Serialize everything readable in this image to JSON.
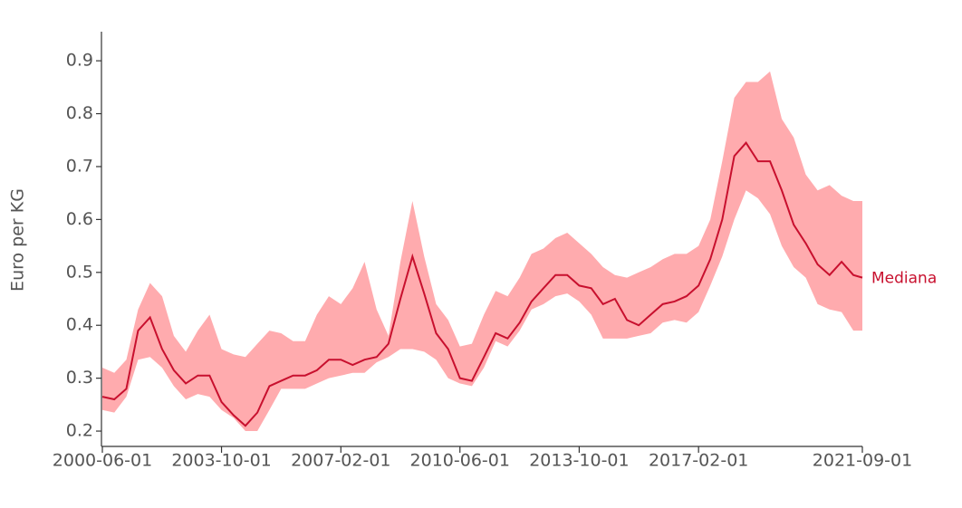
{
  "chart_data": {
    "type": "band-line",
    "y_label": "Euro per KG",
    "x": [
      "2000-06-01",
      "2000-10-01",
      "2001-02-01",
      "2001-06-01",
      "2001-10-01",
      "2002-02-01",
      "2002-06-01",
      "2002-10-01",
      "2003-02-01",
      "2003-06-01",
      "2003-10-01",
      "2004-02-01",
      "2004-06-01",
      "2004-10-01",
      "2005-02-01",
      "2005-06-01",
      "2005-10-01",
      "2006-02-01",
      "2006-06-01",
      "2006-10-01",
      "2007-02-01",
      "2007-06-01",
      "2007-10-01",
      "2008-02-01",
      "2008-06-01",
      "2008-10-01",
      "2009-02-01",
      "2009-06-01",
      "2009-10-01",
      "2010-02-01",
      "2010-06-01",
      "2010-10-01",
      "2011-02-01",
      "2011-06-01",
      "2011-10-01",
      "2012-02-01",
      "2012-06-01",
      "2012-10-01",
      "2013-02-01",
      "2013-06-01",
      "2013-10-01",
      "2014-02-01",
      "2014-06-01",
      "2014-10-01",
      "2015-02-01",
      "2015-06-01",
      "2015-10-01",
      "2016-02-01",
      "2016-06-01",
      "2016-10-01",
      "2017-02-01",
      "2017-06-01",
      "2017-10-01",
      "2018-02-01",
      "2018-06-01",
      "2018-10-01",
      "2019-02-01",
      "2019-06-01",
      "2019-10-01",
      "2020-02-01",
      "2020-06-01",
      "2020-10-01",
      "2021-02-01",
      "2021-06-01",
      "2021-09-01"
    ],
    "series": [
      {
        "name": "Mediana",
        "color": "#c8102e",
        "values": [
          0.265,
          0.26,
          0.28,
          0.39,
          0.415,
          0.355,
          0.315,
          0.29,
          0.305,
          0.305,
          0.255,
          0.23,
          0.21,
          0.235,
          0.285,
          0.295,
          0.305,
          0.305,
          0.315,
          0.335,
          0.335,
          0.325,
          0.335,
          0.34,
          0.365,
          0.45,
          0.53,
          0.46,
          0.385,
          0.355,
          0.3,
          0.295,
          0.34,
          0.385,
          0.375,
          0.405,
          0.445,
          0.47,
          0.495,
          0.495,
          0.475,
          0.47,
          0.44,
          0.45,
          0.41,
          0.4,
          0.42,
          0.44,
          0.445,
          0.455,
          0.475,
          0.525,
          0.6,
          0.72,
          0.745,
          0.71,
          0.71,
          0.655,
          0.59,
          0.555,
          0.515,
          0.495,
          0.52,
          0.495,
          0.49
        ]
      }
    ],
    "band": {
      "color": "#ffabae",
      "lower": [
        0.24,
        0.235,
        0.265,
        0.335,
        0.34,
        0.32,
        0.285,
        0.26,
        0.27,
        0.265,
        0.24,
        0.225,
        0.2,
        0.2,
        0.24,
        0.28,
        0.28,
        0.28,
        0.29,
        0.3,
        0.305,
        0.31,
        0.31,
        0.33,
        0.34,
        0.355,
        0.355,
        0.35,
        0.335,
        0.3,
        0.29,
        0.285,
        0.32,
        0.37,
        0.36,
        0.39,
        0.43,
        0.44,
        0.455,
        0.46,
        0.445,
        0.42,
        0.375,
        0.375,
        0.375,
        0.38,
        0.385,
        0.405,
        0.41,
        0.405,
        0.425,
        0.475,
        0.53,
        0.6,
        0.655,
        0.64,
        0.61,
        0.55,
        0.51,
        0.49,
        0.44,
        0.43,
        0.425,
        0.39,
        0.39
      ],
      "upper": [
        0.32,
        0.31,
        0.335,
        0.43,
        0.48,
        0.455,
        0.38,
        0.35,
        0.39,
        0.42,
        0.355,
        0.345,
        0.34,
        0.365,
        0.39,
        0.385,
        0.37,
        0.37,
        0.42,
        0.455,
        0.44,
        0.47,
        0.52,
        0.43,
        0.38,
        0.52,
        0.635,
        0.53,
        0.44,
        0.41,
        0.36,
        0.365,
        0.42,
        0.465,
        0.455,
        0.49,
        0.535,
        0.545,
        0.565,
        0.575,
        0.555,
        0.535,
        0.51,
        0.495,
        0.49,
        0.5,
        0.51,
        0.525,
        0.535,
        0.535,
        0.55,
        0.6,
        0.71,
        0.83,
        0.86,
        0.86,
        0.88,
        0.79,
        0.755,
        0.685,
        0.655,
        0.665,
        0.645,
        0.635,
        0.635
      ]
    },
    "xlim": [
      "2000-06-01",
      "2021-09-01"
    ],
    "xticks": [
      "2000-06-01",
      "2003-10-01",
      "2007-02-01",
      "2010-06-01",
      "2013-10-01",
      "2017-02-01",
      "2021-09-01"
    ],
    "ylim": [
      0.171,
      0.955
    ],
    "yticks": [
      0.2,
      0.3,
      0.4,
      0.5,
      0.6,
      0.7,
      0.8,
      0.9
    ]
  }
}
